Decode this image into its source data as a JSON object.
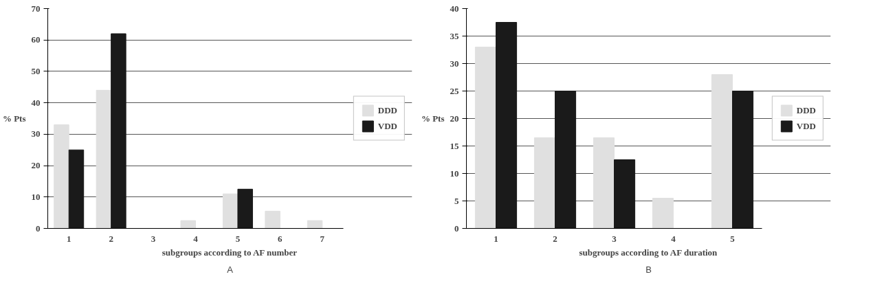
{
  "chart_data": [
    {
      "type": "bar",
      "xlabel": "subgroups according to AF number",
      "ylabel": "% Pts",
      "categories": [
        "1",
        "2",
        "3",
        "4",
        "5",
        "6",
        "7"
      ],
      "ylim": [
        0,
        70
      ],
      "yticks": [
        0,
        10,
        20,
        30,
        40,
        50,
        60,
        70
      ],
      "grid": "y",
      "legend": "right",
      "annotations": [
        "A"
      ],
      "series": [
        {
          "name": "DDD",
          "color": "#e0e0e0",
          "values": [
            33,
            44,
            0,
            2.5,
            11,
            5.5,
            2.5
          ]
        },
        {
          "name": "VDD",
          "color": "#1a1a1a",
          "values": [
            25,
            62,
            0,
            0,
            12.5,
            0,
            0
          ]
        }
      ]
    },
    {
      "type": "bar",
      "xlabel": "subgroups according to AF duration",
      "ylabel": "% Pts",
      "categories": [
        "1",
        "2",
        "3",
        "4",
        "5"
      ],
      "ylim": [
        0,
        40
      ],
      "yticks": [
        0,
        5,
        10,
        15,
        20,
        25,
        30,
        35,
        40
      ],
      "grid": "y",
      "legend": "right",
      "annotations": [
        "B"
      ],
      "series": [
        {
          "name": "DDD",
          "color": "#e0e0e0",
          "values": [
            33,
            16.5,
            16.5,
            5.5,
            28
          ]
        },
        {
          "name": "VDD",
          "color": "#1a1a1a",
          "values": [
            37.5,
            25,
            12.5,
            0,
            25
          ]
        }
      ]
    }
  ]
}
